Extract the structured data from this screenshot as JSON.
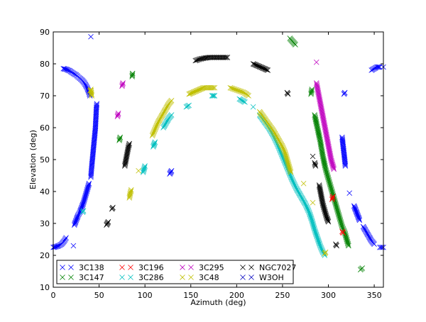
{
  "chart_data": {
    "type": "scatter",
    "xlabel": "Azimuth (deg)",
    "ylabel": "Elevation (deg)",
    "xlim": [
      0,
      360
    ],
    "ylim": [
      10,
      90
    ],
    "xticks": [
      0,
      50,
      100,
      150,
      200,
      250,
      300,
      350
    ],
    "yticks": [
      10,
      20,
      30,
      40,
      50,
      60,
      70,
      80,
      90
    ],
    "grid": false,
    "legend_position": "lower-left",
    "marker": "x",
    "series": [
      {
        "name": "3C138",
        "color": "#0000ff",
        "segments": [
          [
            [
              0,
              22.5
            ],
            [
              3,
              22.7
            ],
            [
              6,
              23
            ],
            [
              9,
              23.5
            ],
            [
              12,
              24.5
            ],
            [
              14,
              25.5
            ]
          ],
          [
            [
              11,
              78.5
            ],
            [
              14,
              78.3
            ],
            [
              18,
              77.8
            ],
            [
              22,
              77
            ],
            [
              25,
              76.5
            ],
            [
              28,
              75.7
            ],
            [
              31,
              75
            ],
            [
              34,
              74
            ],
            [
              37,
              72.5
            ],
            [
              39,
              71
            ],
            [
              40,
              70
            ]
          ],
          [
            [
              41,
              44.5
            ],
            [
              42,
              48
            ],
            [
              43,
              51
            ],
            [
              44,
              54
            ],
            [
              45,
              57
            ],
            [
              46,
              60
            ],
            [
              46.5,
              63
            ],
            [
              47,
              66
            ],
            [
              47.5,
              67.5
            ]
          ],
          [
            [
              23,
              29.5
            ],
            [
              25,
              31
            ],
            [
              27,
              32.5
            ],
            [
              29,
              33.5
            ],
            [
              31,
              35
            ],
            [
              33,
              36.5
            ],
            [
              35,
              38.5
            ],
            [
              37,
              40.5
            ],
            [
              39,
              42.5
            ]
          ],
          [
            [
              22,
              23
            ]
          ],
          [
            [
              41,
              88.5
            ]
          ],
          [
            [
              127,
              45.5
            ],
            [
              128,
              46
            ],
            [
              129,
              46.5
            ]
          ],
          [
            [
              315,
              57
            ],
            [
              316,
              54.5
            ],
            [
              317,
              52
            ],
            [
              318,
              49.5
            ],
            [
              318.5,
              48
            ]
          ],
          [
            [
              317,
              70.5
            ],
            [
              318,
              71
            ]
          ],
          [
            [
              323,
              39.5
            ]
          ],
          [
            [
              328,
              35.5
            ],
            [
              330,
              34
            ],
            [
              332,
              32.5
            ],
            [
              334,
              31
            ]
          ],
          [
            [
              338,
              29
            ],
            [
              341,
              27.5
            ],
            [
              344,
              26
            ],
            [
              347,
              24.5
            ],
            [
              350,
              23.5
            ]
          ],
          [
            [
              356,
              22.5
            ],
            [
              360,
              22.5
            ]
          ],
          [
            [
              347,
              78
            ],
            [
              350,
              78.5
            ],
            [
              353,
              79
            ],
            [
              356,
              79
            ]
          ],
          [
            [
              360,
              79
            ]
          ]
        ]
      },
      {
        "name": "3C147",
        "color": "#008000",
        "segments": [
          [
            [
              72,
              56
            ],
            [
              73,
              57
            ]
          ],
          [
            [
              86,
              76
            ],
            [
              86.5,
              77
            ]
          ],
          [
            [
              281,
              70.5
            ],
            [
              282,
              72
            ]
          ],
          [
            [
              285,
              64
            ],
            [
              288,
              60
            ],
            [
              291,
              56
            ],
            [
              294,
              51
            ],
            [
              297,
              47
            ],
            [
              300,
              44
            ],
            [
              303,
              41
            ],
            [
              306,
              38
            ],
            [
              309,
              35
            ],
            [
              312,
              32
            ],
            [
              315,
              29
            ],
            [
              318,
              27
            ],
            [
              320,
              25
            ],
            [
              322,
              23
            ]
          ],
          [
            [
              258,
              88
            ],
            [
              261,
              87
            ],
            [
              264,
              86
            ]
          ],
          [
            [
              335,
              15.5
            ],
            [
              337,
              16
            ]
          ]
        ]
      },
      {
        "name": "3C196",
        "color": "#ff0000",
        "segments": [
          [
            [
              304,
              37.5
            ],
            [
              305,
              38.5
            ]
          ],
          [
            [
              315,
              27.5
            ],
            [
              316,
              27
            ]
          ]
        ]
      },
      {
        "name": "3C286",
        "color": "#00bfbf",
        "segments": [
          [
            [
              32,
              33.5
            ],
            [
              33,
              34
            ]
          ],
          [
            [
              98,
              46
            ],
            [
              100,
              48
            ]
          ],
          [
            [
              109,
              54
            ],
            [
              111,
              55.5
            ]
          ],
          [
            [
              120,
              60
            ],
            [
              123,
              61.5
            ],
            [
              126,
              63
            ],
            [
              129,
              64
            ]
          ],
          [
            [
              145,
              66.5
            ],
            [
              148,
              67
            ]
          ],
          [
            [
              173,
              70
            ],
            [
              176,
              70
            ]
          ],
          [
            [
              203,
              69
            ],
            [
              206,
              68.5
            ],
            [
              209,
              68
            ]
          ],
          [
            [
              218,
              66.5
            ]
          ],
          [
            [
              225,
              64
            ],
            [
              230,
              62
            ],
            [
              235,
              60
            ],
            [
              240,
              57.5
            ],
            [
              245,
              54.5
            ],
            [
              250,
              51
            ],
            [
              255,
              47.5
            ],
            [
              260,
              44
            ],
            [
              265,
              41
            ],
            [
              270,
              38.5
            ],
            [
              275,
              36
            ],
            [
              279,
              33.5
            ],
            [
              282,
              31
            ],
            [
              285,
              28
            ],
            [
              288,
              25.5
            ],
            [
              291,
              23
            ],
            [
              294,
              21
            ],
            [
              296,
              20
            ]
          ]
        ]
      },
      {
        "name": "3C295",
        "color": "#bf00bf",
        "segments": [
          [
            [
              70,
              63.5
            ],
            [
              71,
              64.5
            ]
          ],
          [
            [
              75,
              73
            ],
            [
              76,
              74
            ]
          ],
          [
            [
              287,
              80.5
            ]
          ],
          [
            [
              287,
              74
            ],
            [
              289,
              71
            ],
            [
              291,
              68
            ],
            [
              293,
              65
            ],
            [
              295,
              62
            ],
            [
              297,
              59
            ],
            [
              299,
              56
            ],
            [
              301,
              53
            ],
            [
              303,
              50
            ],
            [
              305,
              48
            ],
            [
              306,
              47
            ]
          ]
        ]
      },
      {
        "name": "3C48",
        "color": "#bfbf00",
        "segments": [
          [
            [
              40,
              71.5
            ],
            [
              41,
              72
            ],
            [
              42,
              70
            ]
          ],
          [
            [
              83,
              38
            ],
            [
              84,
              39.5
            ],
            [
              85,
              40.5
            ]
          ],
          [
            [
              93,
              46.5
            ]
          ],
          [
            [
              108,
              57.5
            ],
            [
              111,
              59.5
            ],
            [
              114,
              61.5
            ],
            [
              117,
              63
            ],
            [
              120,
              64.5
            ],
            [
              123,
              66
            ],
            [
              126,
              67.5
            ],
            [
              129,
              68.5
            ]
          ],
          [
            [
              148,
              70.5
            ],
            [
              152,
              71
            ],
            [
              156,
              71.5
            ],
            [
              160,
              72
            ],
            [
              164,
              72.5
            ],
            [
              168,
              72.5
            ],
            [
              172,
              72.5
            ],
            [
              176,
              72.5
            ]
          ],
          [
            [
              193,
              72.5
            ],
            [
              198,
              72
            ],
            [
              203,
              71.5
            ],
            [
              208,
              71
            ],
            [
              213,
              70
            ]
          ],
          [
            [
              225,
              65
            ],
            [
              230,
              63
            ],
            [
              235,
              61
            ],
            [
              240,
              59
            ],
            [
              245,
              56.5
            ],
            [
              250,
              54
            ],
            [
              253,
              52
            ],
            [
              256,
              49
            ],
            [
              259,
              46
            ]
          ],
          [
            [
              273,
              42.5
            ]
          ],
          [
            [
              283,
              36.5
            ]
          ],
          [
            [
              296,
              20.5
            ],
            [
              297,
              21
            ]
          ]
        ]
      },
      {
        "name": "NGC7027",
        "color": "#000000",
        "segments": [
          [
            [
              58,
              29.5
            ],
            [
              59,
              30
            ],
            [
              60,
              30.5
            ]
          ],
          [
            [
              64,
              34.5
            ],
            [
              65,
              35
            ]
          ],
          [
            [
              78,
              48
            ],
            [
              79,
              49.5
            ],
            [
              80,
              51
            ],
            [
              81,
              52.5
            ],
            [
              82,
              54
            ],
            [
              83,
              55
            ]
          ],
          [
            [
              155,
              81
            ],
            [
              160,
              81.5
            ],
            [
              165,
              81.8
            ],
            [
              170,
              82
            ],
            [
              175,
              82
            ],
            [
              180,
              82
            ],
            [
              185,
              82
            ],
            [
              190,
              82
            ]
          ],
          [
            [
              218,
              80
            ],
            [
              222,
              79.5
            ],
            [
              226,
              79
            ],
            [
              230,
              78.5
            ],
            [
              234,
              78
            ]
          ],
          [
            [
              255,
              71
            ],
            [
              256,
              70.5
            ]
          ],
          [
            [
              283,
              51
            ]
          ],
          [
            [
              285,
              49
            ],
            [
              286,
              48
            ]
          ],
          [
            [
              290,
              42
            ],
            [
              292,
              39
            ],
            [
              294,
              36
            ],
            [
              296,
              34
            ],
            [
              298,
              32
            ],
            [
              300,
              30.5
            ]
          ],
          [
            [
              308,
              23.5
            ],
            [
              309,
              23
            ]
          ]
        ]
      },
      {
        "name": "W3OH",
        "color": "#0000bf",
        "segments": []
      }
    ]
  }
}
